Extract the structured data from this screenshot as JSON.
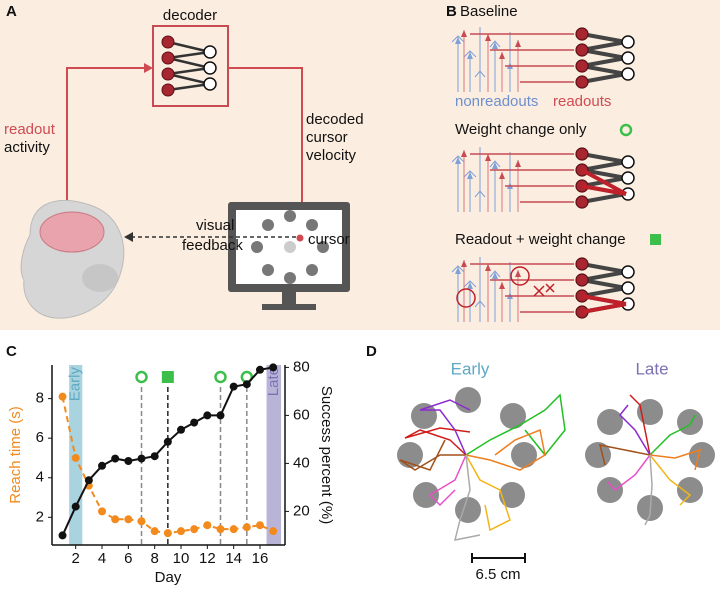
{
  "panel_a": {
    "label": "A",
    "decoder": "decoder",
    "readout": "readout",
    "activity": "activity",
    "velocity_lines": [
      "decoded",
      "cursor",
      "velocity"
    ],
    "cursor": "cursor",
    "feedback_lines": [
      "visual",
      "feedback"
    ]
  },
  "panel_b": {
    "label": "B",
    "baseline": "Baseline",
    "nonreadouts": "nonreadouts",
    "readouts": "readouts",
    "weight_change": "Weight change only",
    "readout_weight_change": "Readout + weight change"
  },
  "chart_data": {
    "type": "line",
    "panel_label": "C",
    "x_label": "Day",
    "y_label": "Reach time (s)",
    "y2_label": "Success percent (%)",
    "x": [
      1,
      2,
      3,
      4,
      5,
      6,
      7,
      8,
      9,
      10,
      11,
      12,
      13,
      14,
      15,
      16,
      17
    ],
    "series": [
      {
        "color": "#f28a1e",
        "dashed": true,
        "values": [
          8.1,
          5.0,
          3.6,
          2.3,
          1.9,
          1.9,
          1.8,
          1.3,
          1.2,
          1.3,
          1.4,
          1.6,
          1.4,
          1.4,
          1.5,
          1.6,
          1.3
        ]
      },
      {
        "color": "#111111",
        "axis": "y2",
        "values": [
          10,
          22,
          33,
          39,
          42,
          41,
          42,
          43,
          49,
          54,
          57,
          60,
          60,
          72,
          73,
          79,
          80
        ]
      }
    ],
    "bands": [
      {
        "label": "Early",
        "range": [
          1.5,
          2.5
        ],
        "color": "#a9d3de",
        "text_color": "#5ea9c4"
      },
      {
        "label": "Late",
        "range": [
          16.5,
          17.6
        ],
        "color": "#b8b4d8",
        "text_color": "#7b72b4"
      }
    ],
    "events": [
      {
        "x": 7,
        "marker": "circle"
      },
      {
        "x": 9,
        "marker": "square"
      },
      {
        "x": 13,
        "marker": "circle"
      },
      {
        "x": 15,
        "marker": "circle"
      }
    ],
    "event_color": "#3cbf4a",
    "xlim": [
      0.2,
      17.9
    ],
    "xticks": [
      2,
      4,
      6,
      8,
      10,
      12,
      14,
      16
    ],
    "ylim": [
      0.6,
      9.7
    ],
    "yticks": [
      2,
      4,
      6,
      8
    ],
    "y2lim": [
      6,
      81
    ],
    "y2ticks": [
      20,
      40,
      60,
      80
    ]
  },
  "panel_d": {
    "label": "D",
    "early": "Early",
    "late": "Late",
    "scale": "6.5 cm"
  }
}
